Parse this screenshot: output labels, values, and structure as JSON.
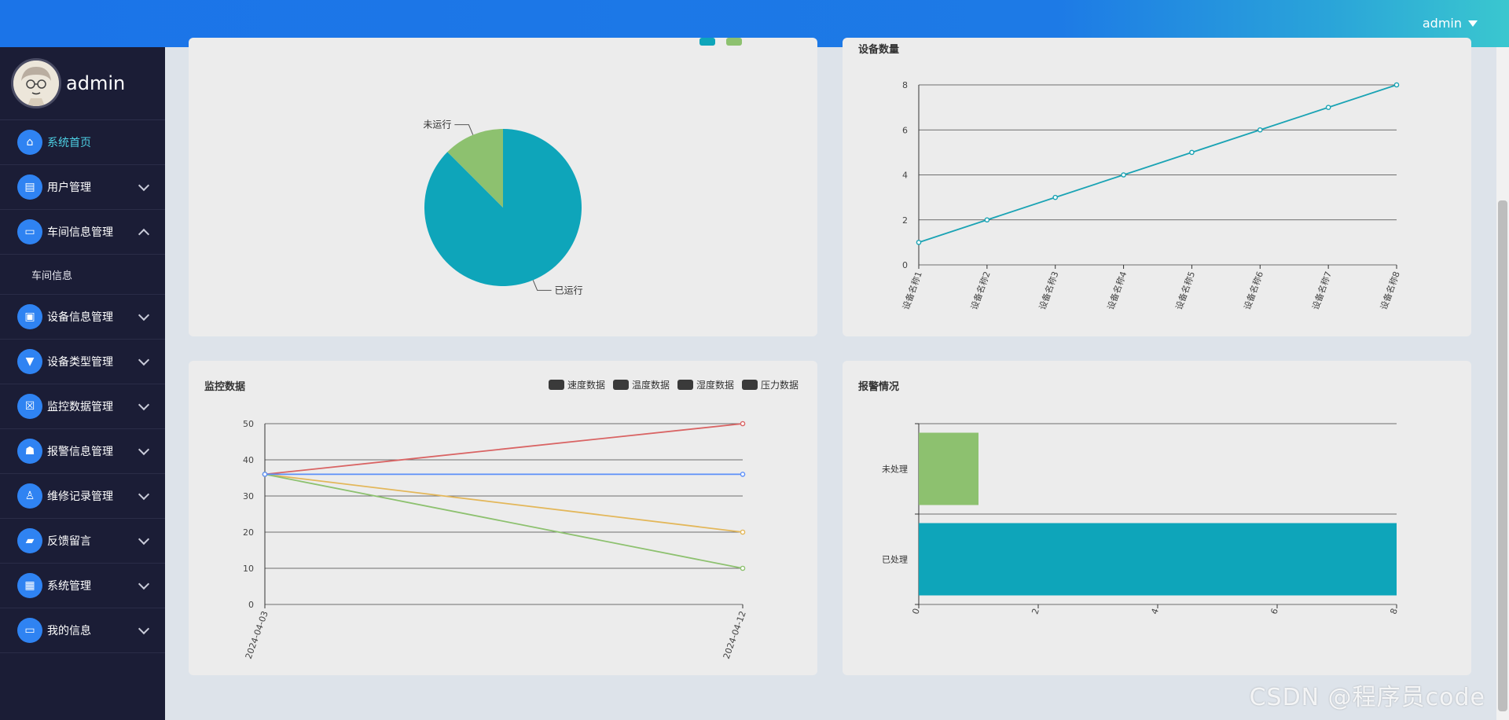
{
  "topbar": {
    "user": "admin"
  },
  "sidebar": {
    "profile_name": "admin",
    "items": [
      {
        "label": "系统首页",
        "icon": "home-icon",
        "glyph": "⌂",
        "active": true
      },
      {
        "label": "用户管理",
        "icon": "clipboard-icon",
        "glyph": "▤",
        "expand": "down"
      },
      {
        "label": "车间信息管理",
        "icon": "monitor-icon",
        "glyph": "▭",
        "expand": "up"
      },
      {
        "label": "车间信息",
        "sub": true
      },
      {
        "label": "设备信息管理",
        "icon": "device-icon",
        "glyph": "▣",
        "expand": "down"
      },
      {
        "label": "设备类型管理",
        "icon": "stamp-icon",
        "glyph": "▼",
        "expand": "down"
      },
      {
        "label": "监控数据管理",
        "icon": "doc-x-icon",
        "glyph": "☒",
        "expand": "down"
      },
      {
        "label": "报警信息管理",
        "icon": "user-card-icon",
        "glyph": "☗",
        "expand": "down"
      },
      {
        "label": "维修记录管理",
        "icon": "person-icon",
        "glyph": "♙",
        "expand": "down"
      },
      {
        "label": "反馈留言",
        "icon": "ticket-icon",
        "glyph": "▰",
        "expand": "down"
      },
      {
        "label": "系统管理",
        "icon": "grid-icon",
        "glyph": "▦",
        "expand": "down"
      },
      {
        "label": "我的信息",
        "icon": "card-icon",
        "glyph": "▭",
        "expand": "down"
      }
    ]
  },
  "charts": {
    "pie": {
      "type": "pie",
      "slices": [
        {
          "name": "已运行",
          "value": 7,
          "color": "#0ea5ba"
        },
        {
          "name": "未运行",
          "value": 1,
          "color": "#8dc16f"
        }
      ]
    },
    "device_count": {
      "type": "line",
      "title": "设备数量",
      "categories": [
        "设备名称1",
        "设备名称2",
        "设备名称3",
        "设备名称4",
        "设备名称5",
        "设备名称6",
        "设备名称7",
        "设备名称8"
      ],
      "values": [
        1,
        2,
        3,
        4,
        5,
        6,
        7,
        8
      ],
      "yticks": [
        "0",
        "2",
        "4",
        "6",
        "8"
      ],
      "ylim": [
        0,
        8
      ],
      "color": "#1aa3b4"
    },
    "monitor": {
      "type": "line",
      "title": "监控数据",
      "categories": [
        "2024-04-03",
        "2024-04-12"
      ],
      "yticks": [
        "0",
        "10",
        "20",
        "30",
        "40",
        "50"
      ],
      "ylim": [
        0,
        50
      ],
      "series": [
        {
          "name": "速度数据",
          "values": [
            36,
            50
          ],
          "color": "#d96464"
        },
        {
          "name": "温度数据",
          "values": [
            36,
            20
          ],
          "color": "#e3b75a"
        },
        {
          "name": "湿度数据",
          "values": [
            36,
            10
          ],
          "color": "#8dc16f"
        },
        {
          "name": "压力数据",
          "values": [
            36,
            36
          ],
          "color": "#5b8ff9"
        }
      ]
    },
    "alarm": {
      "type": "bar",
      "title": "报警情况",
      "categories": [
        "未处理",
        "已处理"
      ],
      "values": [
        1,
        8
      ],
      "colors": [
        "#8dc16f",
        "#0ea5ba"
      ],
      "xticks": [
        "0",
        "2",
        "4",
        "6",
        "8"
      ],
      "xlim": [
        0,
        8
      ]
    }
  },
  "watermark": "CSDN @程序员code"
}
